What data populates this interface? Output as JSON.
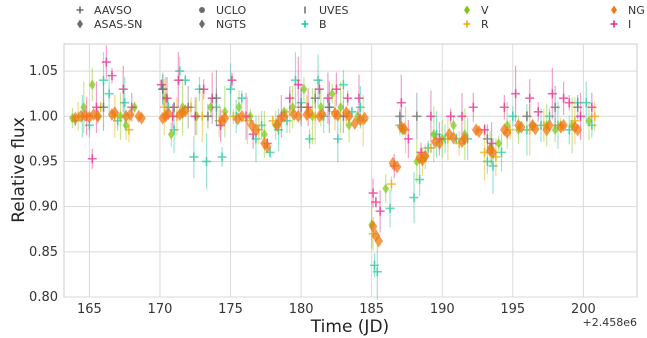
{
  "chart_data": {
    "type": "scatter",
    "xlabel": "Time (JD)",
    "ylabel": "Relative flux",
    "x_offset_label": "+2.458e6",
    "xlim": [
      163.2,
      203.8
    ],
    "ylim": [
      0.8,
      1.08
    ],
    "xticks": [
      "165",
      "170",
      "175",
      "180",
      "185",
      "190",
      "195",
      "200"
    ],
    "yticks": [
      "0.80",
      "0.85",
      "0.90",
      "0.95",
      "1.00",
      "1.05"
    ],
    "grid": true,
    "legend_position": "top",
    "legend": [
      {
        "name": "AAVSO",
        "marker": "plus",
        "color": "#6b6b6b"
      },
      {
        "name": "ASAS-SN",
        "marker": "diamond",
        "color": "#6b6b6b"
      },
      {
        "name": "UCLO",
        "marker": "circle",
        "color": "#6b6b6b"
      },
      {
        "name": "NGTS",
        "marker": "diamond",
        "color": "#6b6b6b"
      },
      {
        "name": "UVES",
        "marker": "vline",
        "color": "#6b6b6b"
      },
      {
        "name": "B",
        "marker": "plus",
        "color": "#1fc7a0"
      },
      {
        "name": "V",
        "marker": "diamond",
        "color": "#7dc816"
      },
      {
        "name": "R",
        "marker": "plus",
        "color": "#e6ab02"
      },
      {
        "name": "NG",
        "marker": "diamond",
        "color": "#f07a14"
      },
      {
        "name": "I",
        "marker": "plus",
        "color": "#e7298a"
      }
    ],
    "series": [
      {
        "name": "B",
        "color": "#1fc7a0",
        "marker": "plus",
        "errors": true,
        "points": [
          [
            164.0,
            0.995
          ],
          [
            164.5,
            1.0
          ],
          [
            165.0,
            0.99
          ],
          [
            166.0,
            1.04
          ],
          [
            166.4,
            1.025
          ],
          [
            167.0,
            0.995
          ],
          [
            167.5,
            1.015
          ],
          [
            170.2,
            1.03
          ],
          [
            170.6,
            1.01
          ],
          [
            171.0,
            0.985
          ],
          [
            171.4,
            1.05
          ],
          [
            171.8,
            1.04
          ],
          [
            172.4,
            0.955
          ],
          [
            172.8,
            1.03
          ],
          [
            173.3,
            0.95
          ],
          [
            174.0,
            1.01
          ],
          [
            174.4,
            0.955
          ],
          [
            175.0,
            1.03
          ],
          [
            175.4,
            1.0
          ],
          [
            175.8,
            1.02
          ],
          [
            176.8,
            0.975
          ],
          [
            177.2,
            0.99
          ],
          [
            177.8,
            0.96
          ],
          [
            178.4,
            0.985
          ],
          [
            179.0,
            0.995
          ],
          [
            179.6,
            1.04
          ],
          [
            180.0,
            1.015
          ],
          [
            180.6,
            0.975
          ],
          [
            181.2,
            1.04
          ],
          [
            181.6,
            1.0
          ],
          [
            182.0,
            1.01
          ],
          [
            182.6,
            0.975
          ],
          [
            183.0,
            1.035
          ],
          [
            183.6,
            1.005
          ],
          [
            184.2,
            1.01
          ],
          [
            185.2,
            0.835
          ],
          [
            185.4,
            0.828
          ],
          [
            186.3,
            0.898
          ],
          [
            187.0,
            0.99
          ],
          [
            188.0,
            0.91
          ],
          [
            188.4,
            0.93
          ],
          [
            189.0,
            0.965
          ],
          [
            189.6,
            0.98
          ],
          [
            190.2,
            0.975
          ],
          [
            191.0,
            0.975
          ],
          [
            191.8,
            0.975
          ],
          [
            193.2,
            0.95
          ],
          [
            193.6,
            0.945
          ],
          [
            194.2,
            0.96
          ],
          [
            195.0,
            1.0
          ],
          [
            196.0,
            0.985
          ],
          [
            197.0,
            0.99
          ],
          [
            197.6,
            1.0
          ],
          [
            198.2,
            0.99
          ],
          [
            199.0,
            0.985
          ],
          [
            199.6,
            1.015
          ],
          [
            200.2,
            1.015
          ],
          [
            200.6,
            0.99
          ]
        ]
      },
      {
        "name": "V",
        "color": "#7dc816",
        "marker": "diamond",
        "errors": true,
        "points": [
          [
            163.8,
            0.998
          ],
          [
            164.6,
            1.01
          ],
          [
            165.2,
            1.035
          ],
          [
            165.6,
            1.0
          ],
          [
            167.2,
            1.0
          ],
          [
            167.6,
            0.99
          ],
          [
            168.2,
            1.01
          ],
          [
            170.4,
            1.02
          ],
          [
            170.8,
            0.98
          ],
          [
            171.6,
            1.01
          ],
          [
            172.6,
            1.0
          ],
          [
            173.6,
            1.01
          ],
          [
            174.6,
            1.005
          ],
          [
            175.6,
            1.01
          ],
          [
            176.4,
            1.0
          ],
          [
            177.4,
            0.98
          ],
          [
            178.2,
            0.99
          ],
          [
            178.8,
            1.005
          ],
          [
            179.4,
            1.01
          ],
          [
            180.2,
            1.03
          ],
          [
            180.8,
            1.0
          ],
          [
            181.4,
            1.01
          ],
          [
            182.2,
            1.025
          ],
          [
            182.8,
            1.01
          ],
          [
            183.4,
            0.99
          ],
          [
            184.0,
            1.0
          ],
          [
            185.0,
            0.88
          ],
          [
            186.0,
            0.92
          ],
          [
            187.2,
            0.985
          ],
          [
            188.2,
            0.95
          ],
          [
            188.8,
            0.955
          ],
          [
            189.4,
            0.98
          ],
          [
            190.0,
            0.975
          ],
          [
            190.8,
            0.99
          ],
          [
            191.6,
            0.98
          ],
          [
            193.4,
            0.965
          ],
          [
            194.0,
            0.97
          ],
          [
            194.6,
            0.99
          ],
          [
            195.4,
            0.985
          ],
          [
            196.4,
            0.99
          ],
          [
            197.4,
            0.99
          ],
          [
            198.0,
            0.985
          ],
          [
            199.2,
            0.99
          ],
          [
            200.4,
            0.995
          ]
        ]
      },
      {
        "name": "R",
        "color": "#e6ab02",
        "marker": "plus",
        "errors": true,
        "points": [
          [
            164.2,
            1.0
          ],
          [
            165.8,
            1.01
          ],
          [
            166.8,
            1.0
          ],
          [
            167.8,
            0.985
          ],
          [
            170.3,
            1.01
          ],
          [
            171.2,
            1.0
          ],
          [
            172.2,
            1.01
          ],
          [
            173.0,
            1.0
          ],
          [
            174.2,
            0.995
          ],
          [
            175.2,
            1.0
          ],
          [
            176.2,
            0.995
          ],
          [
            177.0,
            0.985
          ],
          [
            178.0,
            0.995
          ],
          [
            179.2,
            1.005
          ],
          [
            180.4,
            1.01
          ],
          [
            181.0,
            1.0
          ],
          [
            182.4,
            1.005
          ],
          [
            183.2,
            1.0
          ],
          [
            184.4,
            0.995
          ],
          [
            185.1,
            0.87
          ],
          [
            186.4,
            0.925
          ],
          [
            187.4,
            0.985
          ],
          [
            188.6,
            0.95
          ],
          [
            189.2,
            0.965
          ],
          [
            190.4,
            0.975
          ],
          [
            191.2,
            0.97
          ],
          [
            193.0,
            0.96
          ],
          [
            193.8,
            0.955
          ],
          [
            194.8,
            0.985
          ],
          [
            196.2,
            0.985
          ],
          [
            197.2,
            0.99
          ],
          [
            198.4,
            0.99
          ],
          [
            199.4,
            0.995
          ],
          [
            200.8,
            1.0
          ]
        ]
      },
      {
        "name": "I",
        "color": "#e7298a",
        "marker": "plus",
        "errors": true,
        "points": [
          [
            164.8,
            1.0
          ],
          [
            165.2,
            0.953
          ],
          [
            165.5,
            1.01
          ],
          [
            166.2,
            1.06
          ],
          [
            166.6,
            1.045
          ],
          [
            167.4,
            1.03
          ],
          [
            168.0,
            1.01
          ],
          [
            170.1,
            1.035
          ],
          [
            170.5,
            1.02
          ],
          [
            170.9,
            1.0
          ],
          [
            171.3,
            1.04
          ],
          [
            172.5,
            1.0
          ],
          [
            173.1,
            1.03
          ],
          [
            173.7,
            1.02
          ],
          [
            174.3,
            0.99
          ],
          [
            175.1,
            1.04
          ],
          [
            176.1,
            1.0
          ],
          [
            176.6,
            0.98
          ],
          [
            177.6,
            0.97
          ],
          [
            178.6,
            1.0
          ],
          [
            179.2,
            1.02
          ],
          [
            179.8,
            1.035
          ],
          [
            180.5,
            1.01
          ],
          [
            181.3,
            1.03
          ],
          [
            181.9,
            1.02
          ],
          [
            182.5,
            1.03
          ],
          [
            183.3,
            1.02
          ],
          [
            184.1,
            1.02
          ],
          [
            185.1,
            0.915
          ],
          [
            185.3,
            0.905
          ],
          [
            185.6,
            0.895
          ],
          [
            186.6,
            0.945
          ],
          [
            187.1,
            1.015
          ],
          [
            187.6,
            0.975
          ],
          [
            188.5,
            0.96
          ],
          [
            189.2,
            1.0
          ],
          [
            189.8,
            0.975
          ],
          [
            190.6,
            1.0
          ],
          [
            191.4,
            1.0
          ],
          [
            192.2,
            1.01
          ],
          [
            193.0,
            0.985
          ],
          [
            193.5,
            0.97
          ],
          [
            194.4,
            1.01
          ],
          [
            195.2,
            1.025
          ],
          [
            196.2,
            1.02
          ],
          [
            196.8,
            1.005
          ],
          [
            197.8,
            1.025
          ],
          [
            198.6,
            1.02
          ],
          [
            199.0,
            1.015
          ],
          [
            199.8,
            1.0
          ],
          [
            200.6,
            1.01
          ]
        ]
      },
      {
        "name": "AAVSO",
        "color": "#6b6b6b",
        "marker": "plus",
        "errors": true,
        "points": [
          [
            166.0,
            1.01
          ],
          [
            170.2,
            1.03
          ],
          [
            171.0,
            1.01
          ],
          [
            172.0,
            1.01
          ],
          [
            173.4,
            1.0
          ],
          [
            174.0,
            1.02
          ],
          [
            180.0,
            1.01
          ],
          [
            181.0,
            1.02
          ],
          [
            182.0,
            1.01
          ],
          [
            183.0,
            1.0
          ],
          [
            187.0,
            1.0
          ],
          [
            188.2,
            1.0
          ],
          [
            193.2,
            0.975
          ],
          [
            196.0,
            1.0
          ],
          [
            198.0,
            1.01
          ],
          [
            199.6,
            1.01
          ]
        ]
      },
      {
        "name": "NG",
        "color": "#f07a14",
        "marker": "diamond",
        "errors": false,
        "points": [
          [
            164.0,
            0.998
          ],
          [
            164.4,
            1.0
          ],
          [
            164.7,
            1.001
          ],
          [
            165.0,
            0.999
          ],
          [
            165.3,
            1.002
          ],
          [
            165.6,
            1.0
          ],
          [
            166.6,
            1.002
          ],
          [
            166.8,
            1.004
          ],
          [
            167.6,
            1.0
          ],
          [
            167.9,
            1.002
          ],
          [
            168.5,
            1.0
          ],
          [
            168.7,
            0.998
          ],
          [
            170.2,
            0.998
          ],
          [
            170.4,
            1.0
          ],
          [
            170.6,
            1.003
          ],
          [
            171.4,
            1.002
          ],
          [
            171.6,
            1.004
          ],
          [
            171.8,
            1.006
          ],
          [
            174.4,
            0.995
          ],
          [
            174.6,
            0.998
          ],
          [
            175.5,
            0.997
          ],
          [
            175.8,
            1.0
          ],
          [
            176.5,
            0.99
          ],
          [
            176.8,
            0.985
          ],
          [
            177.4,
            0.97
          ],
          [
            177.6,
            0.966
          ],
          [
            178.3,
            0.99
          ],
          [
            178.5,
            0.996
          ],
          [
            178.8,
            1.0
          ],
          [
            179.5,
            1.002
          ],
          [
            179.8,
            1.0
          ],
          [
            180.4,
            1.002
          ],
          [
            180.6,
            1.004
          ],
          [
            181.3,
            1.0
          ],
          [
            181.5,
            1.002
          ],
          [
            182.4,
            1.003
          ],
          [
            182.6,
            1.001
          ],
          [
            183.2,
            1.004
          ],
          [
            183.4,
            1.0
          ],
          [
            183.8,
            0.992
          ],
          [
            184.2,
            0.996
          ],
          [
            184.5,
            0.998
          ],
          [
            185.1,
            0.878
          ],
          [
            185.3,
            0.868
          ],
          [
            185.5,
            0.862
          ],
          [
            186.5,
            0.948
          ],
          [
            186.8,
            0.944
          ],
          [
            187.1,
            0.988
          ],
          [
            187.3,
            0.986
          ],
          [
            188.4,
            0.954
          ],
          [
            188.6,
            0.952
          ],
          [
            188.8,
            0.956
          ],
          [
            189.5,
            0.972
          ],
          [
            189.8,
            0.97
          ],
          [
            190.5,
            0.98
          ],
          [
            190.8,
            0.976
          ],
          [
            191.4,
            0.972
          ],
          [
            191.6,
            0.975
          ],
          [
            192.4,
            0.985
          ],
          [
            192.6,
            0.983
          ],
          [
            193.4,
            0.962
          ],
          [
            193.6,
            0.96
          ],
          [
            194.4,
            0.985
          ],
          [
            194.6,
            0.982
          ],
          [
            195.4,
            0.99
          ],
          [
            195.6,
            0.988
          ],
          [
            196.4,
            0.99
          ],
          [
            196.6,
            0.986
          ],
          [
            197.4,
            0.985
          ],
          [
            197.6,
            0.99
          ],
          [
            198.4,
            0.988
          ],
          [
            198.6,
            0.99
          ],
          [
            199.4,
            0.988
          ],
          [
            199.6,
            0.985
          ]
        ]
      }
    ]
  }
}
